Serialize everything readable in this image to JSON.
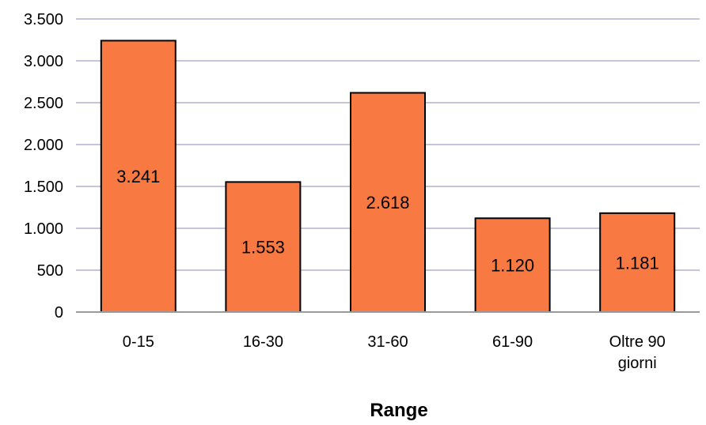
{
  "chart_data": {
    "type": "bar",
    "title": "",
    "xlabel": "Range",
    "ylabel": "",
    "categories": [
      [
        "0-15"
      ],
      [
        "16-30"
      ],
      [
        "31-60"
      ],
      [
        "61-90"
      ],
      [
        "Oltre 90",
        "giorni"
      ]
    ],
    "values": [
      3241,
      1553,
      2618,
      1120,
      1181
    ],
    "value_labels": [
      "3.241",
      "1.553",
      "2.618",
      "1.120",
      "1.181"
    ],
    "ylim": [
      0,
      3500
    ],
    "yticks": [
      0,
      500,
      1000,
      1500,
      2000,
      2500,
      3000,
      3500
    ],
    "ytick_labels": [
      "0",
      "500",
      "1.000",
      "1.500",
      "2.000",
      "2.500",
      "3.000",
      "3.500"
    ],
    "grid": true,
    "legend": "none",
    "colors": {
      "bar_fill": "#f87941",
      "bar_stroke": "#000000",
      "grid": "#c4c4dc",
      "axis": "#9a9a9a"
    }
  }
}
